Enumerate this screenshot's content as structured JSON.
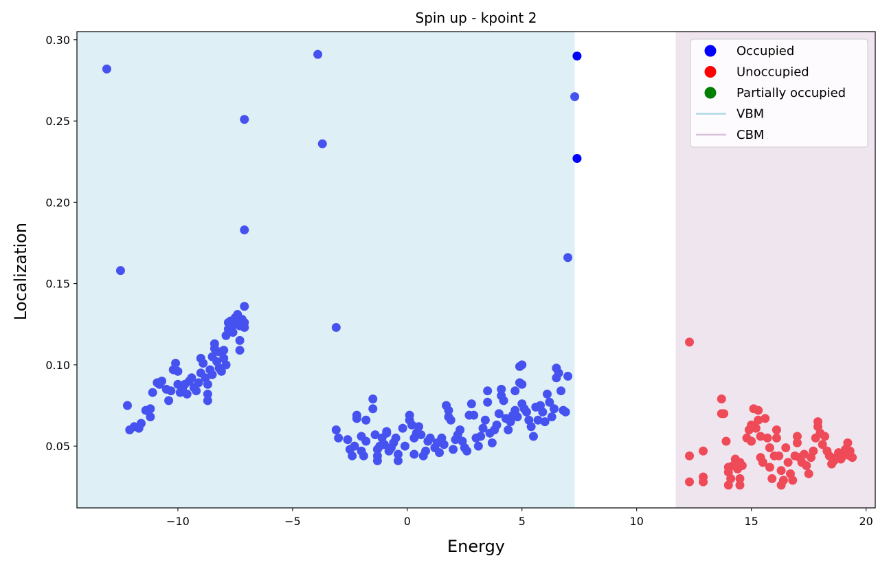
{
  "chart_data": {
    "type": "scatter",
    "title": "Spin up - kpoint 2",
    "xlabel": "Energy",
    "ylabel": "Localization",
    "xlim": [
      -14.4,
      20.4
    ],
    "ylim": [
      0.012,
      0.305
    ],
    "x_ticks": [
      -10,
      -5,
      0,
      5,
      10,
      15,
      20
    ],
    "x_tick_labels": [
      "−10",
      "−5",
      "0",
      "5",
      "10",
      "15",
      "20"
    ],
    "y_ticks": [
      0.05,
      0.1,
      0.15,
      0.2,
      0.25,
      0.3
    ],
    "y_tick_labels": [
      "0.05",
      "0.10",
      "0.15",
      "0.20",
      "0.25",
      "0.30"
    ],
    "grid": false,
    "legend_position": "top-right",
    "regions": [
      {
        "name": "VBM",
        "x_start": -14.4,
        "x_end": 7.3,
        "color": "#add8e6"
      },
      {
        "name": "CBM",
        "x_start": 11.7,
        "x_end": 20.4,
        "color": "#d8bfd8"
      }
    ],
    "legend": [
      {
        "label": "Occupied",
        "kind": "marker",
        "color": "#0000ff"
      },
      {
        "label": "Unoccupied",
        "kind": "marker",
        "color": "#ff0000"
      },
      {
        "label": "Partially occupied",
        "kind": "marker",
        "color": "#008000"
      },
      {
        "label": "VBM",
        "kind": "line",
        "color": "#add8e6"
      },
      {
        "label": "CBM",
        "kind": "line",
        "color": "#d8bfd8"
      }
    ],
    "series": [
      {
        "name": "Occupied",
        "color": "#4652f0",
        "points": [
          [
            -13.1,
            0.282
          ],
          [
            -12.5,
            0.158
          ],
          [
            -7.1,
            0.251
          ],
          [
            -7.1,
            0.183
          ],
          [
            -3.9,
            0.291
          ],
          [
            -3.7,
            0.236
          ],
          [
            -3.1,
            0.123
          ],
          [
            7.0,
            0.166
          ],
          [
            7.3,
            0.265
          ],
          [
            -12.2,
            0.075
          ],
          [
            -12.1,
            0.06
          ],
          [
            -11.9,
            0.062
          ],
          [
            -11.7,
            0.061
          ],
          [
            -11.6,
            0.064
          ],
          [
            -11.4,
            0.072
          ],
          [
            -11.2,
            0.068
          ],
          [
            -11.2,
            0.073
          ],
          [
            -11.1,
            0.083
          ],
          [
            -10.9,
            0.089
          ],
          [
            -10.8,
            0.088
          ],
          [
            -10.7,
            0.09
          ],
          [
            -10.5,
            0.085
          ],
          [
            -10.4,
            0.078
          ],
          [
            -10.3,
            0.084
          ],
          [
            -10.2,
            0.097
          ],
          [
            -10.1,
            0.101
          ],
          [
            -10.0,
            0.096
          ],
          [
            -10.0,
            0.088
          ],
          [
            -9.9,
            0.083
          ],
          [
            -9.8,
            0.085
          ],
          [
            -9.7,
            0.088
          ],
          [
            -9.6,
            0.082
          ],
          [
            -9.5,
            0.09
          ],
          [
            -9.4,
            0.092
          ],
          [
            -9.3,
            0.086
          ],
          [
            -9.2,
            0.084
          ],
          [
            -9.1,
            0.089
          ],
          [
            -9.0,
            0.095
          ],
          [
            -9.0,
            0.104
          ],
          [
            -8.9,
            0.101
          ],
          [
            -8.8,
            0.092
          ],
          [
            -8.7,
            0.088
          ],
          [
            -8.7,
            0.082
          ],
          [
            -8.7,
            0.078
          ],
          [
            -8.6,
            0.097
          ],
          [
            -8.5,
            0.094
          ],
          [
            -8.5,
            0.105
          ],
          [
            -8.4,
            0.11
          ],
          [
            -8.4,
            0.113
          ],
          [
            -8.3,
            0.102
          ],
          [
            -8.2,
            0.098
          ],
          [
            -8.2,
            0.108
          ],
          [
            -8.1,
            0.096
          ],
          [
            -8.0,
            0.104
          ],
          [
            -8.0,
            0.109
          ],
          [
            -7.9,
            0.1
          ],
          [
            -7.9,
            0.118
          ],
          [
            -7.8,
            0.122
          ],
          [
            -7.8,
            0.126
          ],
          [
            -7.7,
            0.127
          ],
          [
            -7.6,
            0.12
          ],
          [
            -7.5,
            0.125
          ],
          [
            -7.5,
            0.129
          ],
          [
            -7.4,
            0.131
          ],
          [
            -7.3,
            0.124
          ],
          [
            -7.3,
            0.115
          ],
          [
            -7.3,
            0.109
          ],
          [
            -7.2,
            0.128
          ],
          [
            -7.1,
            0.136
          ],
          [
            -7.1,
            0.126
          ],
          [
            -7.1,
            0.123
          ],
          [
            -3.1,
            0.06
          ],
          [
            -3.0,
            0.055
          ],
          [
            -2.6,
            0.054
          ],
          [
            -2.5,
            0.048
          ],
          [
            -2.4,
            0.044
          ],
          [
            -2.3,
            0.05
          ],
          [
            -2.2,
            0.067
          ],
          [
            -2.2,
            0.069
          ],
          [
            -2.0,
            0.056
          ],
          [
            -2.0,
            0.047
          ],
          [
            -1.9,
            0.044
          ],
          [
            -1.8,
            0.053
          ],
          [
            -1.8,
            0.066
          ],
          [
            -1.5,
            0.079
          ],
          [
            -1.5,
            0.073
          ],
          [
            -1.4,
            0.057
          ],
          [
            -1.3,
            0.048
          ],
          [
            -1.3,
            0.044
          ],
          [
            -1.3,
            0.041
          ],
          [
            -1.2,
            0.05
          ],
          [
            -1.1,
            0.055
          ],
          [
            -1.0,
            0.051
          ],
          [
            -0.9,
            0.058
          ],
          [
            -0.9,
            0.059
          ],
          [
            -0.8,
            0.047
          ],
          [
            -0.7,
            0.049
          ],
          [
            -0.6,
            0.052
          ],
          [
            -0.5,
            0.055
          ],
          [
            -0.4,
            0.041
          ],
          [
            -0.4,
            0.045
          ],
          [
            -0.2,
            0.061
          ],
          [
            -0.1,
            0.05
          ],
          [
            0.1,
            0.069
          ],
          [
            0.1,
            0.066
          ],
          [
            0.2,
            0.063
          ],
          [
            0.3,
            0.055
          ],
          [
            0.3,
            0.045
          ],
          [
            0.4,
            0.058
          ],
          [
            0.5,
            0.062
          ],
          [
            0.6,
            0.057
          ],
          [
            0.7,
            0.044
          ],
          [
            0.8,
            0.047
          ],
          [
            0.9,
            0.053
          ],
          [
            1.0,
            0.055
          ],
          [
            1.2,
            0.049
          ],
          [
            1.3,
            0.052
          ],
          [
            1.4,
            0.046
          ],
          [
            1.5,
            0.055
          ],
          [
            1.6,
            0.051
          ],
          [
            1.7,
            0.075
          ],
          [
            1.8,
            0.072
          ],
          [
            1.8,
            0.068
          ],
          [
            1.9,
            0.066
          ],
          [
            2.0,
            0.048
          ],
          [
            2.1,
            0.054
          ],
          [
            2.2,
            0.057
          ],
          [
            2.3,
            0.06
          ],
          [
            2.4,
            0.053
          ],
          [
            2.5,
            0.049
          ],
          [
            2.6,
            0.047
          ],
          [
            2.7,
            0.069
          ],
          [
            2.8,
            0.076
          ],
          [
            2.9,
            0.069
          ],
          [
            3.0,
            0.055
          ],
          [
            3.1,
            0.05
          ],
          [
            3.2,
            0.056
          ],
          [
            3.3,
            0.061
          ],
          [
            3.4,
            0.066
          ],
          [
            3.5,
            0.084
          ],
          [
            3.5,
            0.077
          ],
          [
            3.6,
            0.058
          ],
          [
            3.7,
            0.052
          ],
          [
            3.8,
            0.06
          ],
          [
            3.9,
            0.063
          ],
          [
            4.0,
            0.07
          ],
          [
            4.1,
            0.085
          ],
          [
            4.1,
            0.081
          ],
          [
            4.2,
            0.078
          ],
          [
            4.3,
            0.067
          ],
          [
            4.4,
            0.06
          ],
          [
            4.5,
            0.065
          ],
          [
            4.6,
            0.069
          ],
          [
            4.7,
            0.084
          ],
          [
            4.7,
            0.072
          ],
          [
            4.8,
            0.068
          ],
          [
            4.9,
            0.089
          ],
          [
            4.9,
            0.099
          ],
          [
            5.0,
            0.1
          ],
          [
            5.0,
            0.088
          ],
          [
            5.0,
            0.076
          ],
          [
            5.1,
            0.073
          ],
          [
            5.2,
            0.071
          ],
          [
            5.3,
            0.066
          ],
          [
            5.4,
            0.062
          ],
          [
            5.5,
            0.056
          ],
          [
            5.6,
            0.074
          ],
          [
            5.7,
            0.066
          ],
          [
            5.8,
            0.075
          ],
          [
            5.9,
            0.071
          ],
          [
            6.0,
            0.065
          ],
          [
            6.1,
            0.082
          ],
          [
            6.2,
            0.077
          ],
          [
            6.3,
            0.068
          ],
          [
            6.4,
            0.073
          ],
          [
            6.5,
            0.092
          ],
          [
            6.5,
            0.098
          ],
          [
            6.6,
            0.095
          ],
          [
            6.7,
            0.084
          ],
          [
            6.8,
            0.072
          ],
          [
            6.9,
            0.071
          ],
          [
            7.0,
            0.093
          ]
        ]
      },
      {
        "name": "Occupied (edge)",
        "color": "#0000ff",
        "points": [
          [
            7.4,
            0.29
          ],
          [
            7.4,
            0.227
          ]
        ]
      },
      {
        "name": "Unoccupied",
        "color": "#ef4a57",
        "points": [
          [
            12.3,
            0.114
          ],
          [
            12.3,
            0.044
          ],
          [
            12.3,
            0.028
          ],
          [
            12.9,
            0.047
          ],
          [
            12.9,
            0.031
          ],
          [
            12.9,
            0.028
          ],
          [
            13.7,
            0.079
          ],
          [
            13.7,
            0.07
          ],
          [
            13.8,
            0.07
          ],
          [
            13.9,
            0.053
          ],
          [
            14.0,
            0.037
          ],
          [
            14.0,
            0.034
          ],
          [
            14.0,
            0.026
          ],
          [
            14.1,
            0.03
          ],
          [
            14.2,
            0.038
          ],
          [
            14.3,
            0.042
          ],
          [
            14.4,
            0.036
          ],
          [
            14.5,
            0.04
          ],
          [
            14.5,
            0.03
          ],
          [
            14.5,
            0.026
          ],
          [
            14.6,
            0.038
          ],
          [
            14.8,
            0.055
          ],
          [
            14.9,
            0.06
          ],
          [
            15.0,
            0.063
          ],
          [
            15.0,
            0.053
          ],
          [
            15.1,
            0.073
          ],
          [
            15.2,
            0.061
          ],
          [
            15.3,
            0.072
          ],
          [
            15.3,
            0.066
          ],
          [
            15.4,
            0.056
          ],
          [
            15.4,
            0.043
          ],
          [
            15.5,
            0.04
          ],
          [
            15.6,
            0.067
          ],
          [
            15.7,
            0.055
          ],
          [
            15.8,
            0.049
          ],
          [
            15.8,
            0.037
          ],
          [
            15.9,
            0.03
          ],
          [
            16.0,
            0.044
          ],
          [
            16.1,
            0.06
          ],
          [
            16.1,
            0.055
          ],
          [
            16.2,
            0.044
          ],
          [
            16.3,
            0.035
          ],
          [
            16.3,
            0.026
          ],
          [
            16.4,
            0.029
          ],
          [
            16.5,
            0.049
          ],
          [
            16.6,
            0.04
          ],
          [
            16.7,
            0.033
          ],
          [
            16.8,
            0.029
          ],
          [
            16.9,
            0.044
          ],
          [
            17.0,
            0.056
          ],
          [
            17.0,
            0.052
          ],
          [
            17.1,
            0.043
          ],
          [
            17.2,
            0.04
          ],
          [
            17.3,
            0.045
          ],
          [
            17.4,
            0.038
          ],
          [
            17.5,
            0.033
          ],
          [
            17.6,
            0.043
          ],
          [
            17.7,
            0.047
          ],
          [
            17.8,
            0.055
          ],
          [
            17.9,
            0.065
          ],
          [
            17.9,
            0.062
          ],
          [
            18.0,
            0.058
          ],
          [
            18.1,
            0.051
          ],
          [
            18.2,
            0.056
          ],
          [
            18.3,
            0.047
          ],
          [
            18.4,
            0.044
          ],
          [
            18.5,
            0.039
          ],
          [
            18.6,
            0.041
          ],
          [
            18.7,
            0.043
          ],
          [
            18.8,
            0.046
          ],
          [
            18.9,
            0.042
          ],
          [
            19.0,
            0.044
          ],
          [
            19.1,
            0.048
          ],
          [
            19.2,
            0.052
          ],
          [
            19.3,
            0.047
          ],
          [
            19.3,
            0.044
          ],
          [
            19.4,
            0.043
          ]
        ]
      }
    ]
  }
}
